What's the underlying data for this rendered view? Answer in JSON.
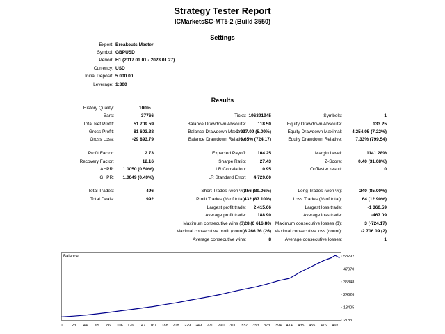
{
  "report": {
    "title": "Strategy Tester Report",
    "subtitle": "ICMarketsSC-MT5-2 (Build 3550)"
  },
  "settings": {
    "heading": "Settings",
    "rows": [
      {
        "label": "Expert:",
        "value": "Breakouts Master"
      },
      {
        "label": "Symbol:",
        "value": "GBPUSD"
      },
      {
        "label": "Period:",
        "value": "H1 (2017.01.01 - 2023.01.27)"
      },
      {
        "label": "Currency:",
        "value": "USD"
      },
      {
        "label": "Initial Deposit:",
        "value": "5 000.00"
      },
      {
        "label": "Leverage:",
        "value": "1:300"
      }
    ]
  },
  "results": {
    "heading": "Results",
    "history_quality": {
      "label": "History Quality:",
      "value": "100%"
    },
    "rows": [
      [
        {
          "label": "Bars:",
          "value": "37766"
        },
        {
          "label": "Ticks:",
          "value": "196391945"
        },
        {
          "label": "Symbols:",
          "value": "1"
        }
      ],
      [
        {
          "label": "Total Net Profit:",
          "value": "51 709.59"
        },
        {
          "label": "Balance Drawdown Absolute:",
          "value": "118.50"
        },
        {
          "label": "Equity Drawdown Absolute:",
          "value": "133.25"
        }
      ],
      [
        {
          "label": "Gross Profit:",
          "value": "81 603.38"
        },
        {
          "label": "Balance Drawdown Maximal:",
          "value": "2 997.09 (5.09%)"
        },
        {
          "label": "Equity Drawdown Maximal:",
          "value": "4 254.05 (7.22%)"
        }
      ],
      [
        {
          "label": "Gross Loss:",
          "value": "-29 893.79"
        },
        {
          "label": "Balance Drawdown Relative:",
          "value": "6.65% (724.17)"
        },
        {
          "label": "Equity Drawdown Relative:",
          "value": "7.33% (799.54)"
        }
      ],
      [
        {
          "label": "Profit Factor:",
          "value": "2.73"
        },
        {
          "label": "Expected Payoff:",
          "value": "104.25"
        },
        {
          "label": "Margin Level:",
          "value": "1141.28%"
        }
      ],
      [
        {
          "label": "Recovery Factor:",
          "value": "12.16"
        },
        {
          "label": "Sharpe Ratio:",
          "value": "27.43"
        },
        {
          "label": "Z-Score:",
          "value": "0.40 (31.08%)"
        }
      ],
      [
        {
          "label": "AHPR:",
          "value": "1.0050 (0.50%)"
        },
        {
          "label": "LR Correlation:",
          "value": "0.95"
        },
        {
          "label": "OnTester result:",
          "value": "0"
        }
      ],
      [
        {
          "label": "GHPR:",
          "value": "1.0049 (0.49%)"
        },
        {
          "label": "LR Standard Error:",
          "value": "4 729.60"
        },
        {
          "label": "",
          "value": ""
        }
      ],
      [
        {
          "label": "Total Trades:",
          "value": "496"
        },
        {
          "label": "Short Trades (won %):",
          "value": "256 (89.06%)"
        },
        {
          "label": "Long Trades (won %):",
          "value": "240 (85.00%)"
        }
      ],
      [
        {
          "label": "Total Deals:",
          "value": "992"
        },
        {
          "label": "Profit Trades (% of total):",
          "value": "432 (87.10%)"
        },
        {
          "label": "Loss Trades (% of total):",
          "value": "64 (12.90%)"
        }
      ],
      [
        {
          "label": "",
          "value": ""
        },
        {
          "label": "Largest profit trade:",
          "value": "2 415.66"
        },
        {
          "label": "Largest loss trade:",
          "value": "-1 360.59"
        }
      ],
      [
        {
          "label": "",
          "value": ""
        },
        {
          "label": "Average profit trade:",
          "value": "188.90"
        },
        {
          "label": "Average loss trade:",
          "value": "-467.09"
        }
      ],
      [
        {
          "label": "",
          "value": ""
        },
        {
          "label": "Maximum consecutive wins ($):",
          "value": "28 (6 616.80)"
        },
        {
          "label": "Maximum consecutive losses ($):",
          "value": "3 (-724.17)"
        }
      ],
      [
        {
          "label": "",
          "value": ""
        },
        {
          "label": "Maximal consecutive profit (count):",
          "value": "8 266.36 (26)"
        },
        {
          "label": "Maximal consecutive loss (count):",
          "value": "-2 706.09 (2)"
        }
      ],
      [
        {
          "label": "",
          "value": ""
        },
        {
          "label": "Average consecutive wins:",
          "value": "8"
        },
        {
          "label": "Average consecutive losses:",
          "value": "1"
        }
      ]
    ]
  },
  "chart_data": {
    "type": "line",
    "title": "Balance",
    "xlabel": "",
    "ylabel": "",
    "x_ticks": [
      0,
      23,
      44,
      65,
      86,
      106,
      126,
      147,
      167,
      188,
      208,
      229,
      249,
      270,
      290,
      311,
      332,
      353,
      373,
      394,
      414,
      435,
      455,
      476,
      497
    ],
    "y_ticks": [
      2183,
      13405,
      24626,
      35848,
      47070,
      58292
    ],
    "xlim": [
      0,
      507
    ],
    "ylim": [
      2183,
      62000
    ],
    "line_color": "#00008b",
    "series": [
      {
        "name": "",
        "x": [
          0,
          23,
          44,
          65,
          86,
          106,
          126,
          147,
          167,
          188,
          208,
          229,
          249,
          270,
          290,
          311,
          332,
          353,
          373,
          394,
          414,
          435,
          455,
          476,
          490,
          497,
          505
        ],
        "y": [
          5000,
          5700,
          6600,
          7700,
          8900,
          10200,
          11400,
          12800,
          14100,
          15800,
          17300,
          19300,
          21000,
          22900,
          24700,
          27100,
          29200,
          31300,
          33800,
          36700,
          38800,
          44600,
          49400,
          54300,
          56800,
          58900,
          56700
        ]
      }
    ]
  }
}
